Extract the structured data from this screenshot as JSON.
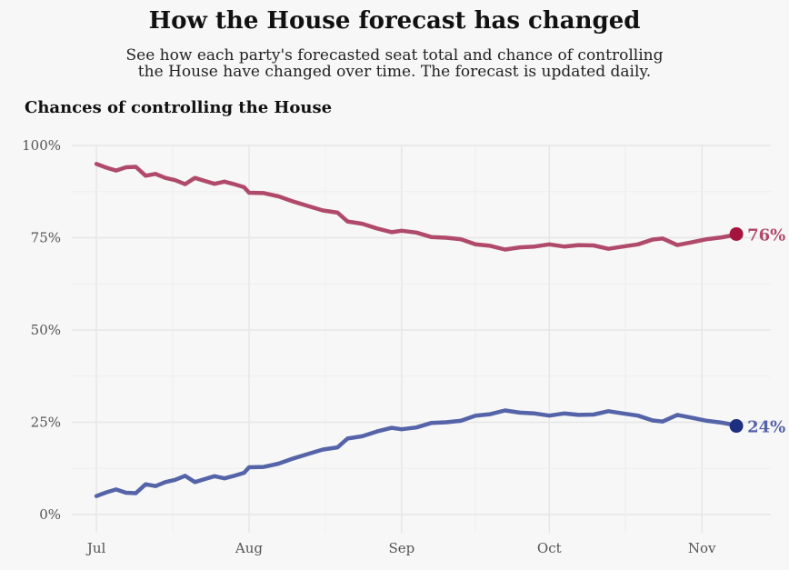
{
  "header": {
    "title": "How the House forecast has changed",
    "subtitle_line1": "See how each party's forecasted seat total and chance of controlling",
    "subtitle_line2": "the House have changed over time. The forecast is updated daily."
  },
  "chart_data": {
    "type": "line",
    "title": "Chances of controlling the House",
    "xlabel": "",
    "ylabel": "",
    "ylim": [
      0,
      100
    ],
    "xlim": [
      "2022-06-26",
      "2022-11-15"
    ],
    "yticks": [
      0,
      25,
      50,
      75,
      100
    ],
    "ytick_labels": [
      "0%",
      "25%",
      "50%",
      "75%",
      "100%"
    ],
    "xticks": [
      "2022-07-01",
      "2022-08-01",
      "2022-09-01",
      "2022-10-01",
      "2022-11-01"
    ],
    "xtick_labels": [
      "Jul",
      "Aug",
      "Sep",
      "Oct",
      "Nov"
    ],
    "grid": true,
    "series": [
      {
        "color": "#b04a6b",
        "marker_color": "#a5143f",
        "end_label": "76%",
        "points": [
          [
            "2022-07-01",
            95
          ],
          [
            "2022-07-03",
            94
          ],
          [
            "2022-07-05",
            93.2
          ],
          [
            "2022-07-07",
            94.1
          ],
          [
            "2022-07-09",
            94.2
          ],
          [
            "2022-07-11",
            91.8
          ],
          [
            "2022-07-13",
            92.3
          ],
          [
            "2022-07-15",
            91.2
          ],
          [
            "2022-07-17",
            90.6
          ],
          [
            "2022-07-19",
            89.5
          ],
          [
            "2022-07-21",
            91.2
          ],
          [
            "2022-07-23",
            90.4
          ],
          [
            "2022-07-25",
            89.6
          ],
          [
            "2022-07-27",
            90.2
          ],
          [
            "2022-07-29",
            89.5
          ],
          [
            "2022-07-31",
            88.7
          ],
          [
            "2022-08-01",
            87.2
          ],
          [
            "2022-08-04",
            87.1
          ],
          [
            "2022-08-07",
            86.2
          ],
          [
            "2022-08-10",
            84.8
          ],
          [
            "2022-08-13",
            83.6
          ],
          [
            "2022-08-16",
            82.4
          ],
          [
            "2022-08-19",
            81.8
          ],
          [
            "2022-08-21",
            79.4
          ],
          [
            "2022-08-24",
            78.8
          ],
          [
            "2022-08-27",
            77.5
          ],
          [
            "2022-08-30",
            76.5
          ],
          [
            "2022-09-01",
            76.9
          ],
          [
            "2022-09-04",
            76.4
          ],
          [
            "2022-09-07",
            75.2
          ],
          [
            "2022-09-10",
            75.0
          ],
          [
            "2022-09-13",
            74.6
          ],
          [
            "2022-09-16",
            73.2
          ],
          [
            "2022-09-19",
            72.8
          ],
          [
            "2022-09-22",
            71.8
          ],
          [
            "2022-09-25",
            72.4
          ],
          [
            "2022-09-28",
            72.6
          ],
          [
            "2022-10-01",
            73.2
          ],
          [
            "2022-10-04",
            72.6
          ],
          [
            "2022-10-07",
            73.0
          ],
          [
            "2022-10-10",
            72.9
          ],
          [
            "2022-10-13",
            72.0
          ],
          [
            "2022-10-16",
            72.6
          ],
          [
            "2022-10-19",
            73.2
          ],
          [
            "2022-10-22",
            74.5
          ],
          [
            "2022-10-24",
            74.8
          ],
          [
            "2022-10-27",
            73.0
          ],
          [
            "2022-10-30",
            73.8
          ],
          [
            "2022-11-02",
            74.6
          ],
          [
            "2022-11-05",
            75.1
          ],
          [
            "2022-11-07",
            75.6
          ],
          [
            "2022-11-08",
            76
          ]
        ]
      },
      {
        "color": "#5563a8",
        "marker_color": "#1f2f7f",
        "end_label": "24%",
        "points": [
          [
            "2022-07-01",
            5
          ],
          [
            "2022-07-03",
            6
          ],
          [
            "2022-07-05",
            6.8
          ],
          [
            "2022-07-07",
            5.9
          ],
          [
            "2022-07-09",
            5.8
          ],
          [
            "2022-07-11",
            8.2
          ],
          [
            "2022-07-13",
            7.7
          ],
          [
            "2022-07-15",
            8.8
          ],
          [
            "2022-07-17",
            9.4
          ],
          [
            "2022-07-19",
            10.5
          ],
          [
            "2022-07-21",
            8.8
          ],
          [
            "2022-07-23",
            9.6
          ],
          [
            "2022-07-25",
            10.4
          ],
          [
            "2022-07-27",
            9.8
          ],
          [
            "2022-07-29",
            10.5
          ],
          [
            "2022-07-31",
            11.3
          ],
          [
            "2022-08-01",
            12.8
          ],
          [
            "2022-08-04",
            12.9
          ],
          [
            "2022-08-07",
            13.8
          ],
          [
            "2022-08-10",
            15.2
          ],
          [
            "2022-08-13",
            16.4
          ],
          [
            "2022-08-16",
            17.6
          ],
          [
            "2022-08-19",
            18.2
          ],
          [
            "2022-08-21",
            20.6
          ],
          [
            "2022-08-24",
            21.2
          ],
          [
            "2022-08-27",
            22.5
          ],
          [
            "2022-08-30",
            23.5
          ],
          [
            "2022-09-01",
            23.1
          ],
          [
            "2022-09-04",
            23.6
          ],
          [
            "2022-09-07",
            24.8
          ],
          [
            "2022-09-10",
            25.0
          ],
          [
            "2022-09-13",
            25.4
          ],
          [
            "2022-09-16",
            26.8
          ],
          [
            "2022-09-19",
            27.2
          ],
          [
            "2022-09-22",
            28.2
          ],
          [
            "2022-09-25",
            27.6
          ],
          [
            "2022-09-28",
            27.4
          ],
          [
            "2022-10-01",
            26.8
          ],
          [
            "2022-10-04",
            27.4
          ],
          [
            "2022-10-07",
            27.0
          ],
          [
            "2022-10-10",
            27.1
          ],
          [
            "2022-10-13",
            28.0
          ],
          [
            "2022-10-16",
            27.4
          ],
          [
            "2022-10-19",
            26.8
          ],
          [
            "2022-10-22",
            25.5
          ],
          [
            "2022-10-24",
            25.2
          ],
          [
            "2022-10-27",
            27.0
          ],
          [
            "2022-10-30",
            26.2
          ],
          [
            "2022-11-02",
            25.4
          ],
          [
            "2022-11-05",
            24.9
          ],
          [
            "2022-11-07",
            24.4
          ],
          [
            "2022-11-08",
            24
          ]
        ]
      }
    ]
  }
}
